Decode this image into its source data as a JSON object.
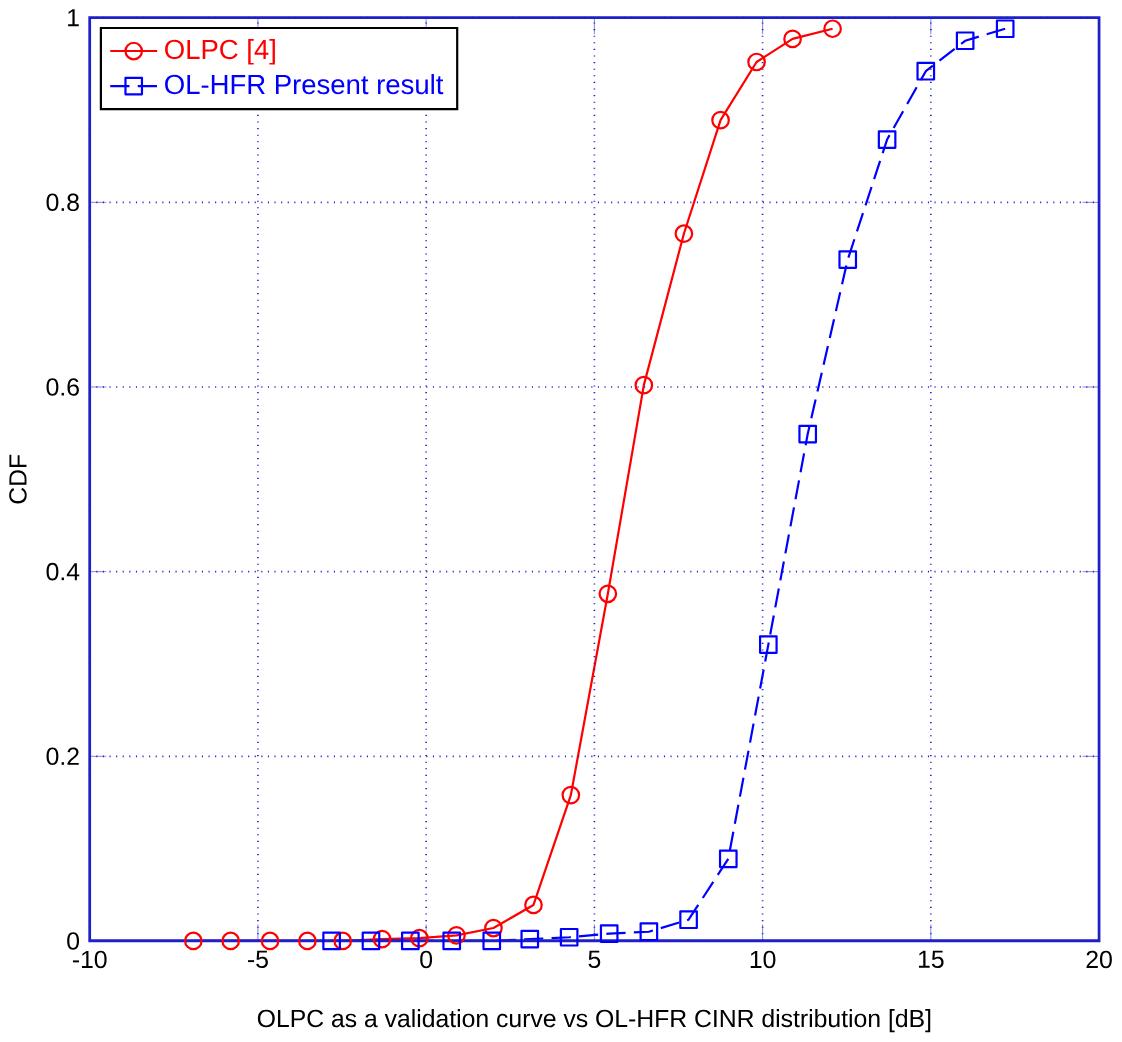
{
  "chart_data": {
    "type": "line",
    "xlabel": "OLPC as a validation curve vs OL-HFR CINR distribution [dB]",
    "ylabel": "CDF",
    "xlim": [
      -10,
      20
    ],
    "ylim": [
      0,
      1
    ],
    "xticks": [
      -10,
      -5,
      0,
      5,
      10,
      15,
      20
    ],
    "yticks": [
      0,
      0.2,
      0.4,
      0.6,
      0.8,
      1
    ],
    "grid": true,
    "legend": "top left",
    "series": [
      {
        "name": "OLPC [4]",
        "color": "#ff0000",
        "marker": "circle",
        "line_style": "solid",
        "x": [
          -6.92,
          -5.81,
          -4.64,
          -3.53,
          -2.48,
          -1.31,
          -0.2,
          0.9,
          2.0,
          3.19,
          4.3,
          5.4,
          6.47,
          7.66,
          8.75,
          9.82,
          10.89,
          12.08
        ],
        "values": [
          0,
          0,
          0,
          0,
          0,
          0.002,
          0.003,
          0.006,
          0.014,
          0.039,
          0.158,
          0.376,
          0.602,
          0.766,
          0.889,
          0.952,
          0.977,
          0.988
        ]
      },
      {
        "name": "OL-HFR Present result",
        "color": "#0000ff",
        "marker": "square",
        "line_style": "dashed",
        "x": [
          -2.81,
          -1.64,
          -0.47,
          0.76,
          1.95,
          3.08,
          4.25,
          5.44,
          6.62,
          7.8,
          8.98,
          10.17,
          11.34,
          12.53,
          13.7,
          14.85,
          16.02,
          17.21
        ],
        "values": [
          0,
          0,
          0,
          0,
          0,
          0.002,
          0.004,
          0.008,
          0.01,
          0.023,
          0.089,
          0.321,
          0.549,
          0.738,
          0.868,
          0.942,
          0.975,
          0.988
        ]
      }
    ]
  }
}
